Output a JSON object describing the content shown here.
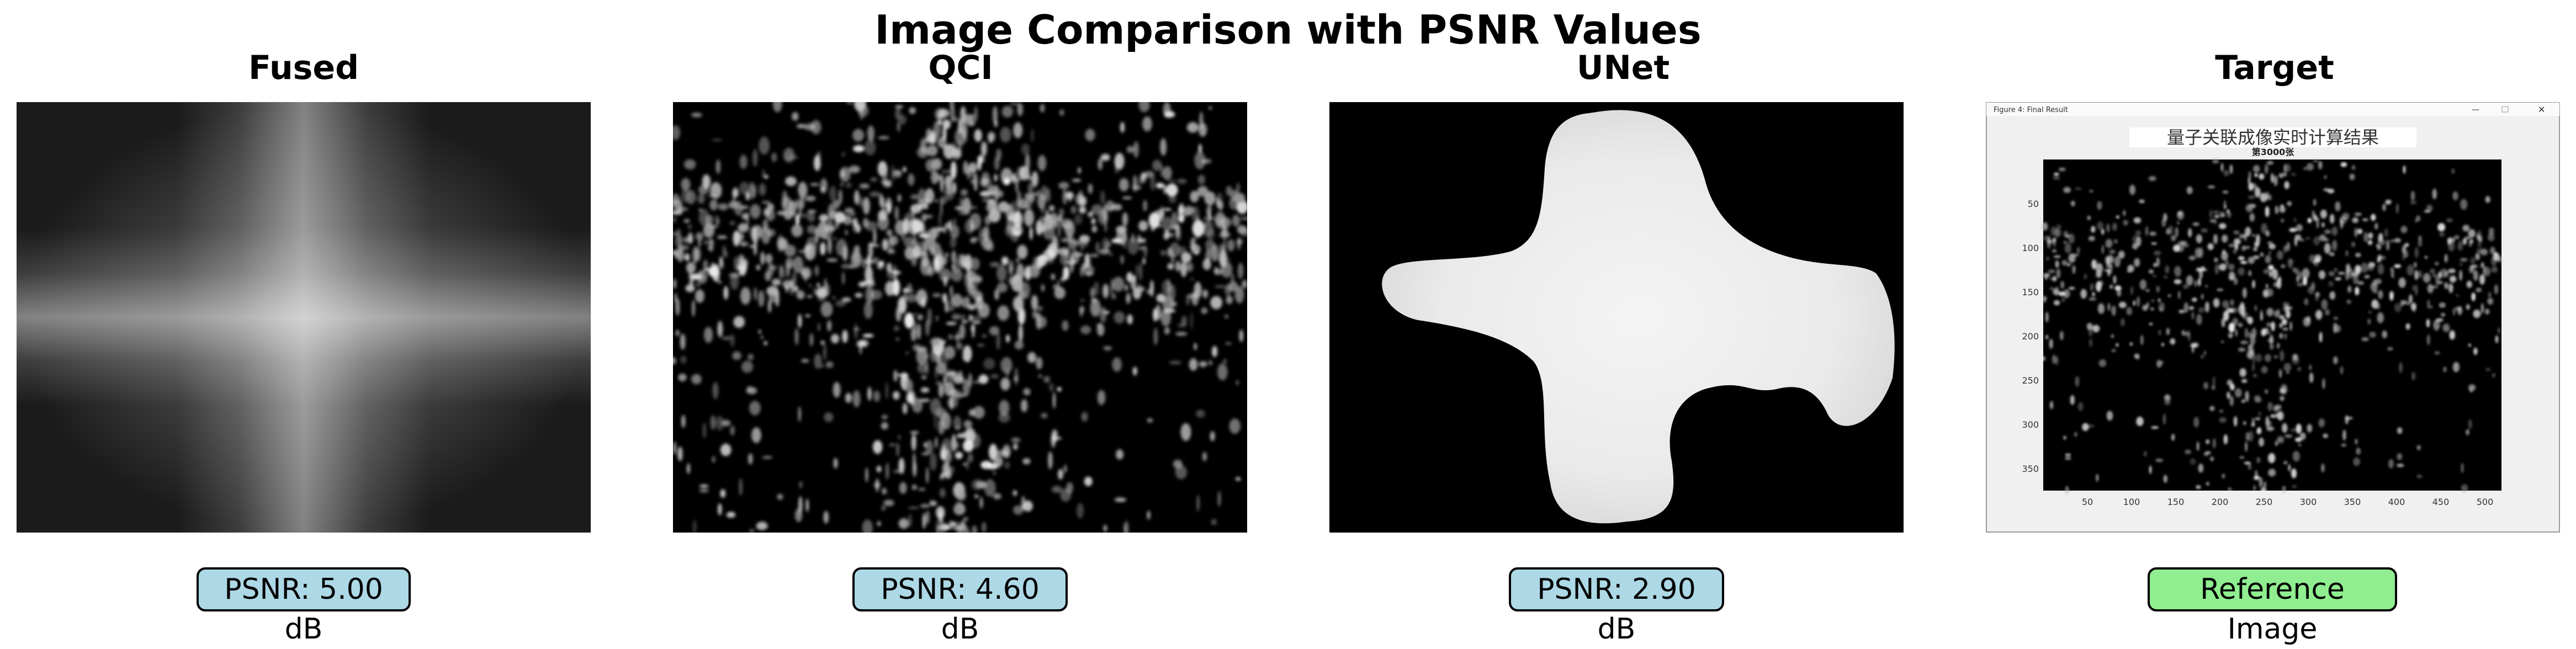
{
  "title": "Image Comparison with PSNR Values",
  "panels": [
    {
      "title": "Fused",
      "badge": "PSNR: 5.00 dB"
    },
    {
      "title": "QCI",
      "badge": "PSNR: 4.60 dB"
    },
    {
      "title": "UNet",
      "badge": "PSNR: 2.90 dB"
    },
    {
      "title": "Target",
      "badge": "Reference Image"
    }
  ],
  "target_window": {
    "window_title": "Figure 4: Final Result",
    "heading": "量子关联成像实时计算结果",
    "subheading": "第3000张",
    "y_ticks": [
      "50",
      "100",
      "150",
      "200",
      "250",
      "300",
      "350"
    ],
    "x_ticks": [
      "50",
      "100",
      "150",
      "200",
      "250",
      "300",
      "350",
      "400",
      "450",
      "500"
    ]
  },
  "colors": {
    "psnr_badge": "#add8e6",
    "reference_badge": "#90ee90"
  }
}
